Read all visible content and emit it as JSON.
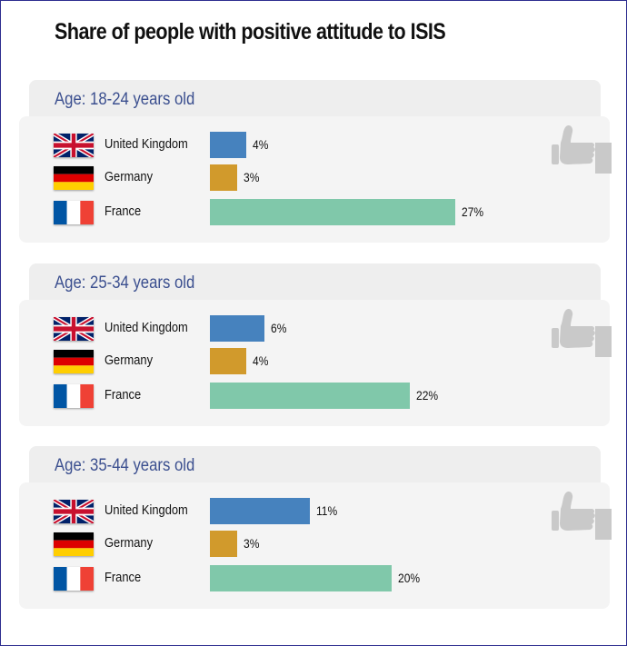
{
  "colors": {
    "uk_bar": "#4682be",
    "de_bar": "#d19a2c",
    "fr_bar": "#80c8aa",
    "age_text": "#3b4f8f",
    "thumb_icon": "#c9c9c9"
  },
  "chart_data": {
    "type": "bar",
    "orientation": "horizontal",
    "title": "Share of people with positive attitude to ISIS",
    "categories": [
      "United Kingdom",
      "Germany",
      "France"
    ],
    "flag_icons": [
      "uk-flag-icon",
      "germany-flag-icon",
      "france-flag-icon"
    ],
    "xlim": [
      0,
      27
    ],
    "unit": "%",
    "groups": [
      {
        "label": "Age: 18-24 years old",
        "values": [
          4,
          3,
          27
        ],
        "value_labels": [
          "4%",
          "3%",
          "27%"
        ]
      },
      {
        "label": "Age: 25-34 years old",
        "values": [
          6,
          4,
          22
        ],
        "value_labels": [
          "6%",
          "4%",
          "22%"
        ]
      },
      {
        "label": "Age: 35-44 years old",
        "values": [
          11,
          3,
          20
        ],
        "value_labels": [
          "11%",
          "3%",
          "20%"
        ]
      }
    ]
  }
}
